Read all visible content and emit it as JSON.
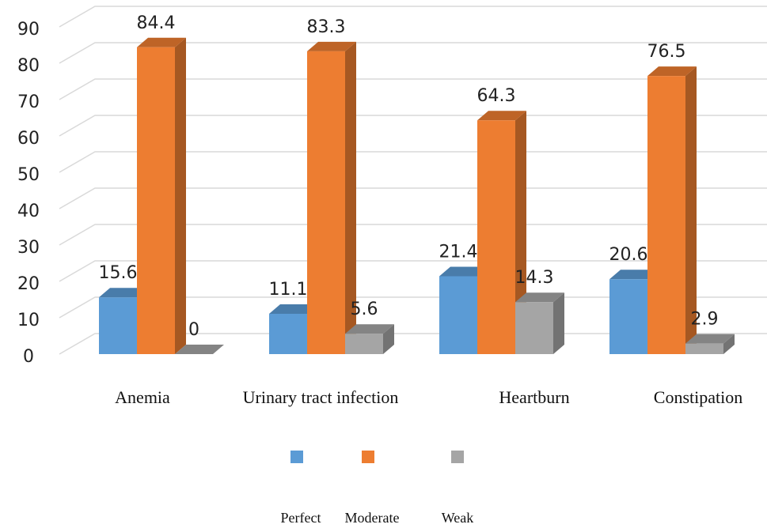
{
  "chart_data": {
    "type": "bar3d",
    "categories": [
      "Anemia",
      "Urinary tract infection",
      "Heartburn",
      "Constipation"
    ],
    "series": [
      {
        "name": "Perfect",
        "color": "#5b9bd5",
        "values": [
          15.6,
          11.1,
          21.4,
          20.6
        ]
      },
      {
        "name": "Moderate",
        "color": "#ed7d31",
        "values": [
          84.4,
          83.3,
          64.3,
          76.5
        ]
      },
      {
        "name": "Weak",
        "color": "#a5a5a5",
        "values": [
          0,
          5.6,
          14.3,
          2.9
        ]
      }
    ],
    "ylim": [
      0,
      90
    ],
    "yticks": [
      0,
      10,
      20,
      30,
      40,
      50,
      60,
      70,
      80,
      90
    ],
    "grid": true
  }
}
